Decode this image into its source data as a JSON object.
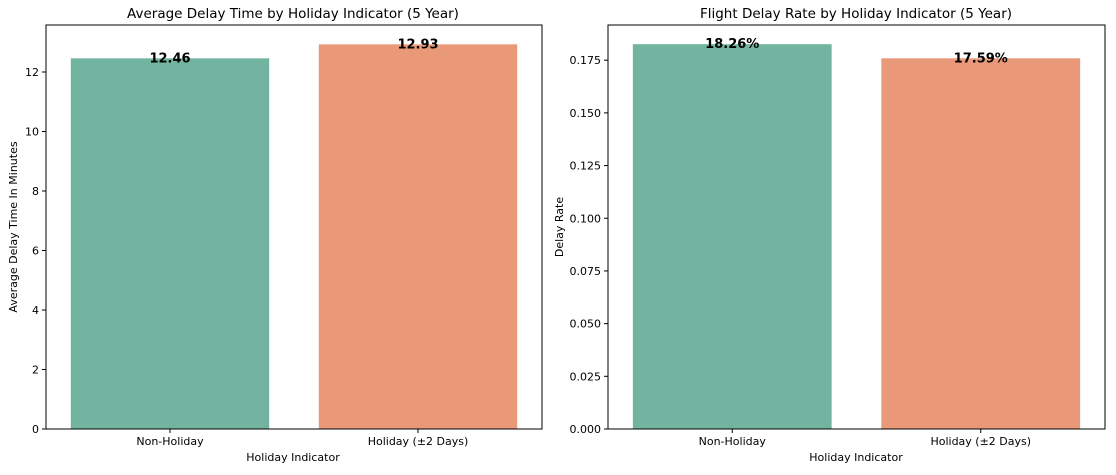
{
  "chart_data": [
    {
      "type": "bar",
      "title": "Average Delay Time by Holiday Indicator (5 Year)",
      "xlabel": "Holiday Indicator",
      "ylabel": "Average Delay Time In Minutes",
      "categories": [
        "Non-Holiday",
        "Holiday (±2 Days)"
      ],
      "values": [
        12.46,
        12.93
      ],
      "data_labels": [
        "12.46",
        "12.93"
      ],
      "bar_colors": [
        "#72b4a0",
        "#e99878"
      ],
      "ylim": [
        0,
        13.58
      ],
      "yticks": [
        0,
        2,
        4,
        6,
        8,
        10,
        12
      ],
      "ytick_labels": [
        "0",
        "2",
        "4",
        "6",
        "8",
        "10",
        "12"
      ],
      "grid": false
    },
    {
      "type": "bar",
      "title": "Flight Delay Rate by Holiday Indicator (5 Year)",
      "xlabel": "Holiday Indicator",
      "ylabel": "Delay Rate",
      "categories": [
        "Non-Holiday",
        "Holiday (±2 Days)"
      ],
      "values": [
        0.1826,
        0.1759
      ],
      "data_labels": [
        "18.26%",
        "17.59%"
      ],
      "bar_colors": [
        "#72b4a0",
        "#e99878"
      ],
      "ylim": [
        0,
        0.1917
      ],
      "yticks": [
        0,
        0.025,
        0.05,
        0.075,
        0.1,
        0.125,
        0.15,
        0.175
      ],
      "ytick_labels": [
        "0.000",
        "0.025",
        "0.050",
        "0.075",
        "0.100",
        "0.125",
        "0.150",
        "0.175"
      ],
      "grid": false
    }
  ]
}
